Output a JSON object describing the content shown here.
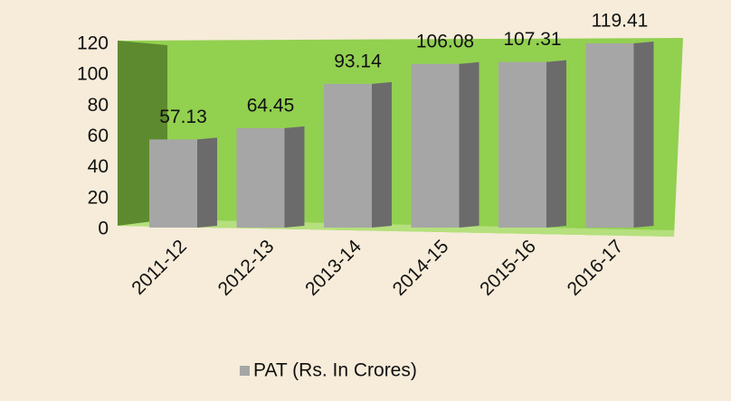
{
  "chart_data": {
    "type": "bar",
    "categories": [
      "2011-12",
      "2012-13",
      "2013-14",
      "2014-15",
      "2015-16",
      "2016-17"
    ],
    "series": [
      {
        "name": "PAT (Rs. In Crores)",
        "color": "#a6a6a6",
        "values": [
          57.13,
          64.45,
          93.14,
          106.08,
          107.31,
          119.41
        ]
      }
    ],
    "ylim": [
      0,
      120
    ],
    "yticks": [
      0,
      20,
      40,
      60,
      80,
      100,
      120
    ],
    "grid": false,
    "legend": "bottom"
  }
}
